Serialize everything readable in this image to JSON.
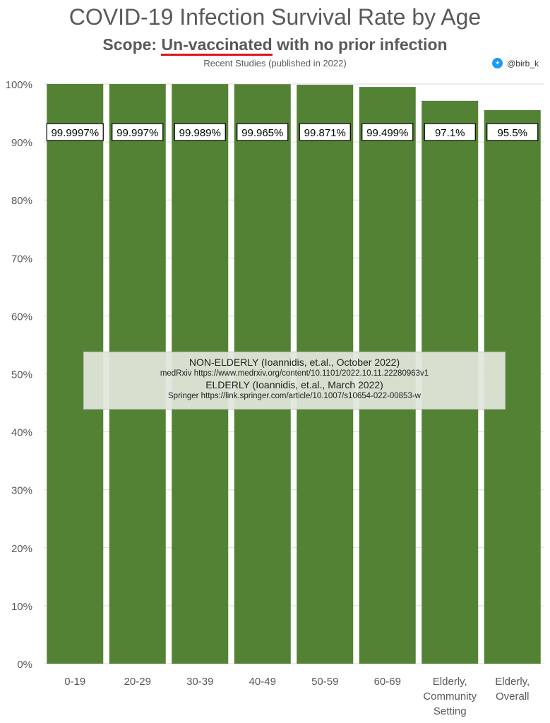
{
  "header": {
    "title": "COVID-19 Infection Survival Rate by Age",
    "scope_label": "Scope:",
    "scope_emphasis": "Un-vaccinated",
    "scope_rest": "with no prior infection",
    "subtitle": "Recent Studies (published in 2022)",
    "handle": "@birb_k"
  },
  "sources": {
    "line1": "NON-ELDERLY (Ioannidis, et.al., October 2022)",
    "line2": "medRxiv https://www.medrxiv.org/content/10.1101/2022.10.11.22280963v1",
    "line3": "ELDERLY (Ioannidis, et.al., March 2022)",
    "line4": "Springer https://link.springer.com/article/10.1007/s10654-022-00853-w"
  },
  "chart_data": {
    "type": "bar",
    "title": "COVID-19 Infection Survival Rate by Age",
    "categories": [
      [
        "0-19"
      ],
      [
        "20-29"
      ],
      [
        "30-39"
      ],
      [
        "40-49"
      ],
      [
        "50-59"
      ],
      [
        "60-69"
      ],
      [
        "Elderly,",
        "Community",
        "Setting"
      ],
      [
        "Elderly,",
        "Overall"
      ]
    ],
    "values": [
      99.9997,
      99.997,
      99.989,
      99.965,
      99.871,
      99.499,
      97.1,
      95.5
    ],
    "data_labels": [
      "99.9997%",
      "99.997%",
      "99.989%",
      "99.965%",
      "99.871%",
      "99.499%",
      "97.1%",
      "95.5%"
    ],
    "ylim": [
      0,
      100
    ],
    "yticks": [
      "0%",
      "10%",
      "20%",
      "30%",
      "40%",
      "50%",
      "60%",
      "70%",
      "80%",
      "90%",
      "100%"
    ],
    "bar_color": "#548235",
    "grid": true
  }
}
